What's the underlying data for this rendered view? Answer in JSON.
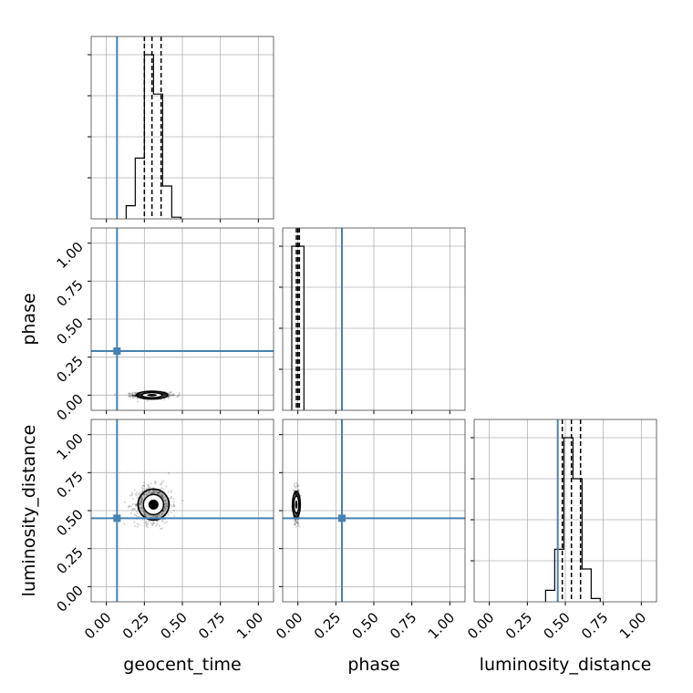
{
  "chart_data": {
    "type": "corner",
    "parameters": [
      "geocent_time",
      "phase",
      "luminosity_distance"
    ],
    "xlabels": [
      "geocent_time",
      "phase",
      "luminosity_distance"
    ],
    "ylabels": [
      "",
      "phase",
      "luminosity_distance"
    ],
    "range": [
      -0.1,
      1.1
    ],
    "ticks": [
      0.0,
      0.25,
      0.5,
      0.75,
      1.0
    ],
    "tick_labels": [
      "0.00",
      "0.25",
      "0.50",
      "0.75",
      "1.00"
    ],
    "truths": {
      "geocent_time": 0.07,
      "phase": 0.29,
      "luminosity_distance": 0.45
    },
    "truth_color": "#4682b4",
    "grid": true,
    "marginals": [
      {
        "parameter": "geocent_time",
        "bins": [
          0.13,
          0.19,
          0.25,
          0.31,
          0.37,
          0.43,
          0.49
        ],
        "counts": [
          0.08,
          0.37,
          1.0,
          0.76,
          0.2,
          0.01
        ],
        "quantiles": [
          0.25,
          0.3,
          0.36
        ]
      },
      {
        "parameter": "phase",
        "bins": [
          -0.04,
          0.0,
          0.04
        ],
        "counts": [
          1.0,
          1.0
        ],
        "quantiles": [
          -0.01,
          0.0,
          0.01
        ]
      },
      {
        "parameter": "luminosity_distance",
        "bins": [
          0.37,
          0.43,
          0.49,
          0.55,
          0.61,
          0.67,
          0.73
        ],
        "counts": [
          0.07,
          0.32,
          1.0,
          0.75,
          0.2,
          0.02
        ],
        "quantiles": [
          0.48,
          0.54,
          0.6
        ]
      }
    ],
    "joint": [
      {
        "x": "geocent_time",
        "y": "phase",
        "center": [
          0.3,
          0.0
        ],
        "spread": [
          0.06,
          0.01
        ]
      },
      {
        "x": "geocent_time",
        "y": "luminosity_distance",
        "center": [
          0.31,
          0.54
        ],
        "spread": [
          0.06,
          0.06
        ]
      },
      {
        "x": "phase",
        "y": "luminosity_distance",
        "center": [
          -0.01,
          0.54
        ],
        "spread": [
          0.01,
          0.05
        ]
      }
    ]
  }
}
